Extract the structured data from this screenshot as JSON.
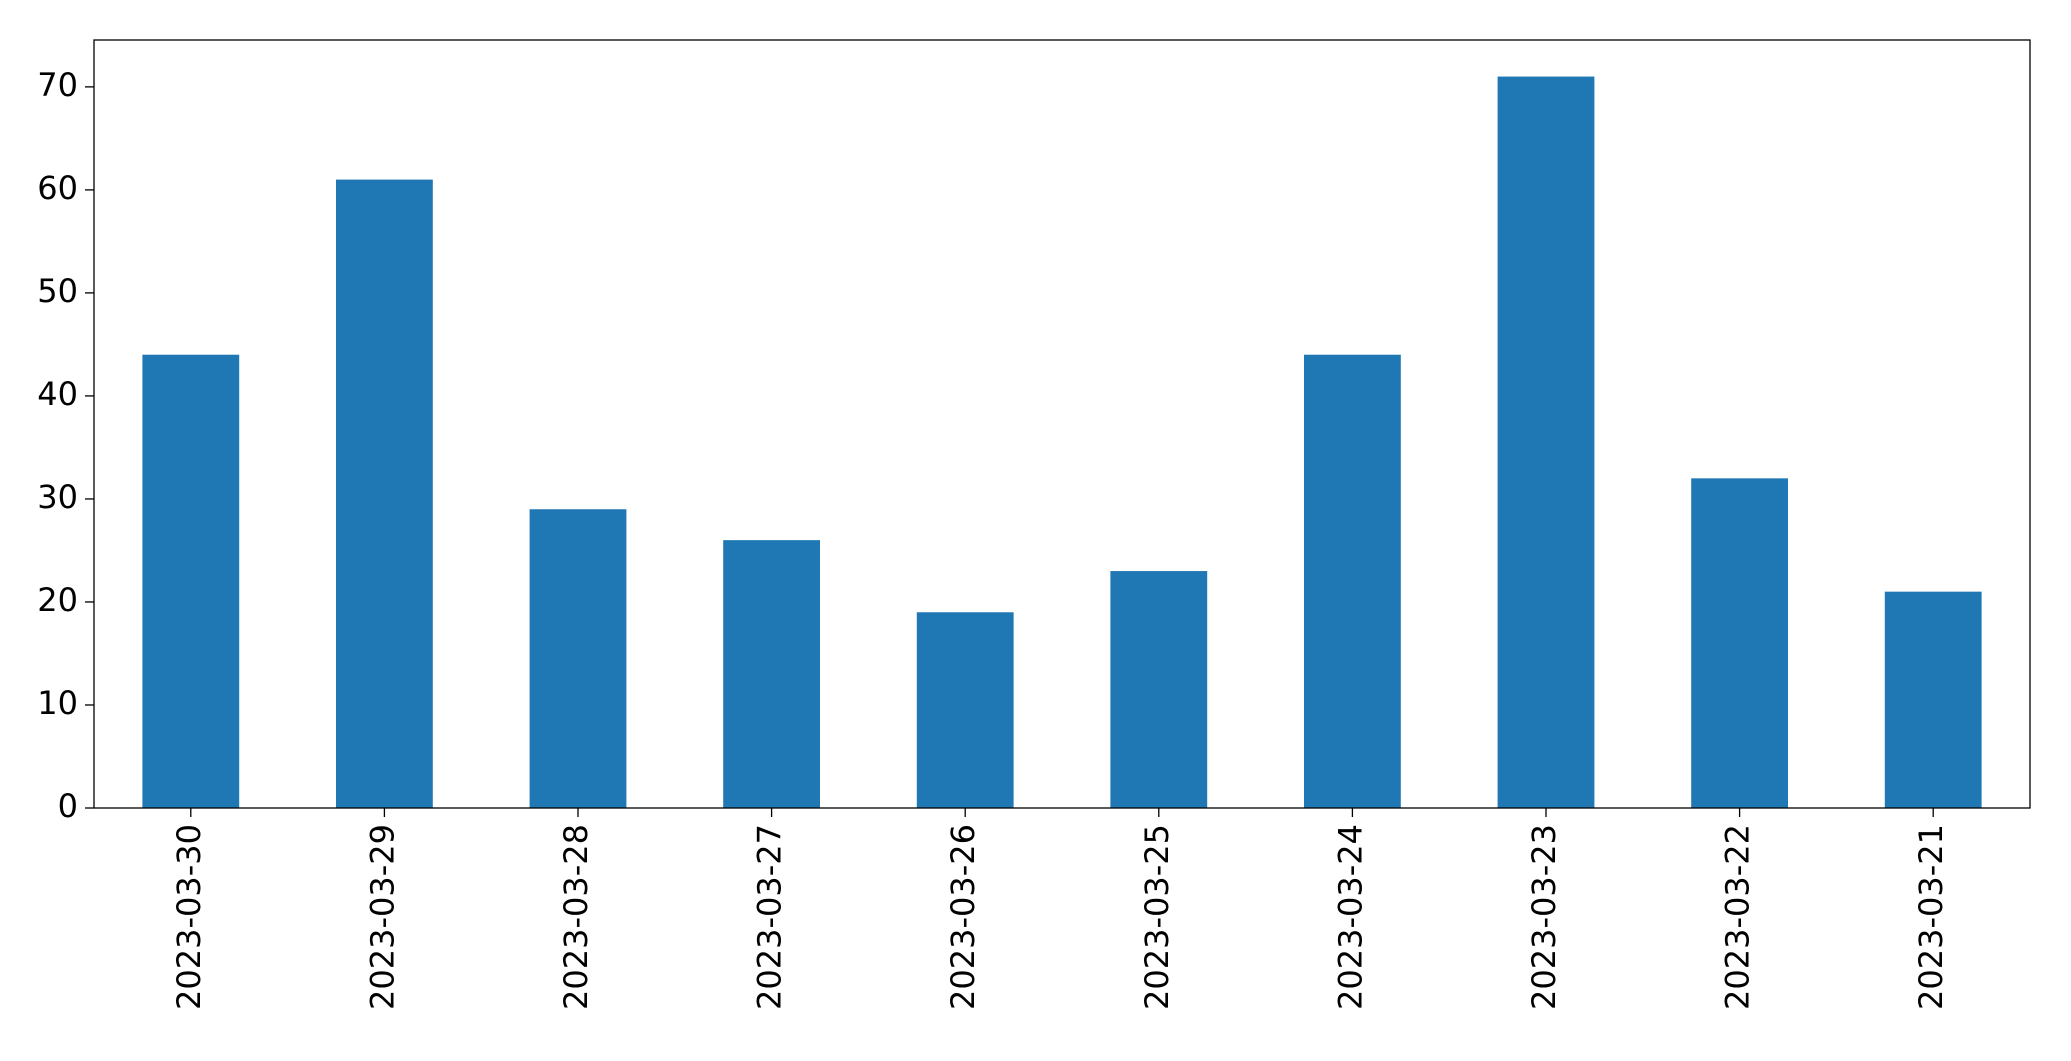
{
  "chart_data": {
    "type": "bar",
    "categories": [
      "2023-03-30",
      "2023-03-29",
      "2023-03-28",
      "2023-03-27",
      "2023-03-26",
      "2023-03-25",
      "2023-03-24",
      "2023-03-23",
      "2023-03-22",
      "2023-03-21"
    ],
    "values": [
      44,
      61,
      29,
      26,
      19,
      23,
      44,
      71,
      32,
      21
    ],
    "color": "#1f77b4",
    "ylim": [
      0,
      74.55
    ],
    "yticks": [
      0,
      10,
      20,
      30,
      40,
      50,
      60,
      70
    ],
    "grid": false
  }
}
